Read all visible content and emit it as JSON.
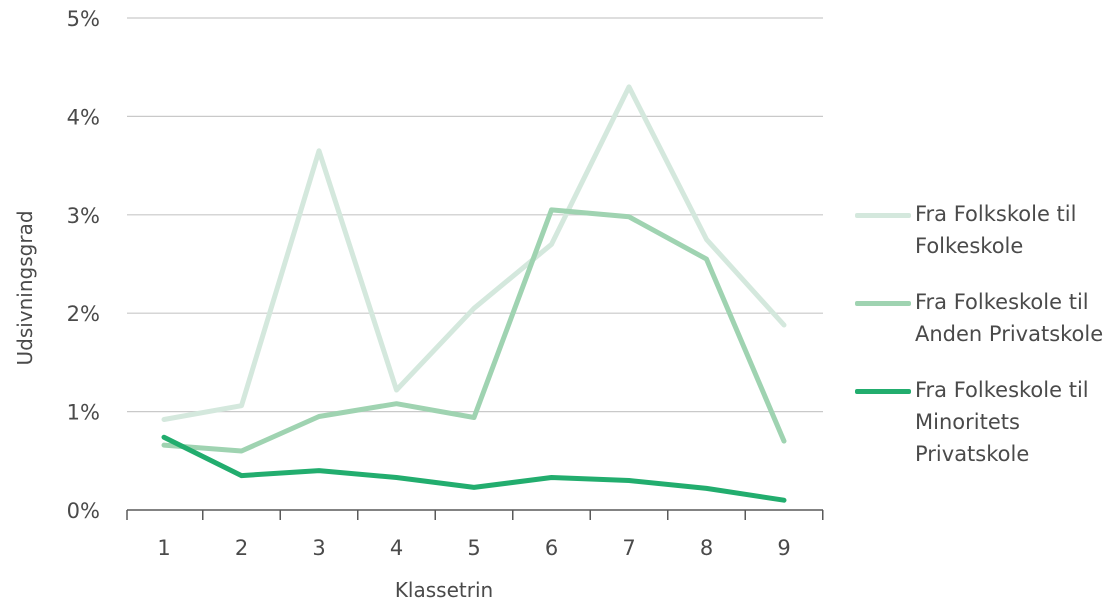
{
  "chart_data": {
    "type": "line",
    "xlabel": "Klassetrin",
    "ylabel": "Udsivningsgrad",
    "x": [
      1,
      2,
      3,
      4,
      5,
      6,
      7,
      8,
      9
    ],
    "x_tick_labels": [
      "1",
      "2",
      "3",
      "4",
      "5",
      "6",
      "7",
      "8",
      "9"
    ],
    "ylim": [
      0,
      5
    ],
    "y_ticks": [
      0,
      1,
      2,
      3,
      4,
      5
    ],
    "y_tick_labels": [
      "0%",
      "1%",
      "2%",
      "3%",
      "4%",
      "5%"
    ],
    "grid": true,
    "legend_position": "right",
    "series": [
      {
        "name": "Fra Folkskole til\nFolkeskole",
        "color": "#d4e8dd",
        "values": [
          0.92,
          1.06,
          3.65,
          1.22,
          2.05,
          2.7,
          4.3,
          2.75,
          1.88
        ]
      },
      {
        "name": "Fra Folkeskole til\nAnden Privatskole",
        "color": "#9fd3b1",
        "values": [
          0.66,
          0.6,
          0.95,
          1.08,
          0.94,
          3.05,
          2.98,
          2.55,
          0.7
        ]
      },
      {
        "name": "Fra Folkeskole til\nMinoritets\nPrivatskole",
        "color": "#22ad6e",
        "values": [
          0.74,
          0.35,
          0.4,
          0.33,
          0.23,
          0.33,
          0.3,
          0.22,
          0.1
        ]
      }
    ]
  }
}
